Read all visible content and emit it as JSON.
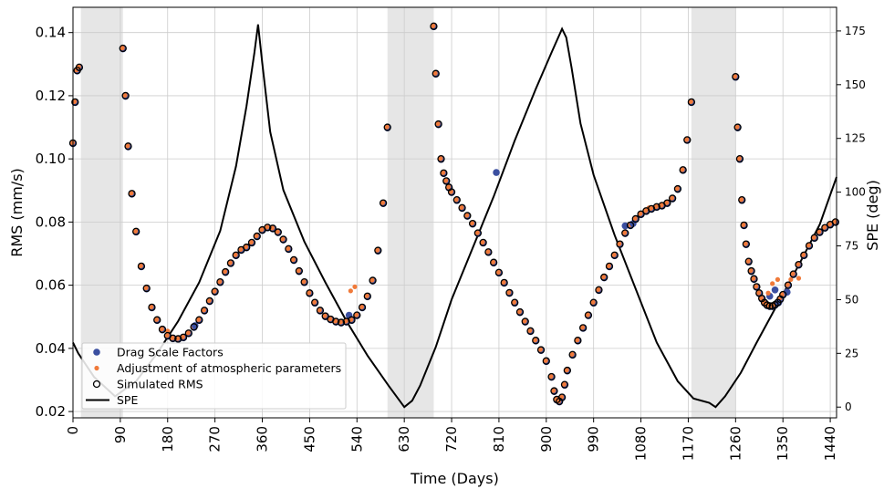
{
  "chart_data": {
    "type": "scatter",
    "xlabel": "Time (Days)",
    "ylabel": "RMS (mm/s)",
    "ylabel_right": "SPE (deg)",
    "xlim": [
      0,
      1452
    ],
    "ylim": [
      0.018,
      0.148
    ],
    "ylim_right": [
      -5,
      186
    ],
    "x_ticks": [
      0,
      90,
      180,
      270,
      360,
      450,
      540,
      630,
      720,
      810,
      900,
      990,
      1080,
      1170,
      1260,
      1350,
      1440
    ],
    "y_ticks": [
      0.02,
      0.04,
      0.06,
      0.08,
      0.1,
      0.12,
      0.14
    ],
    "y_tick_labels": [
      "0.02",
      "0.04",
      "0.06",
      "0.08",
      "0.10",
      "0.12",
      "0.14"
    ],
    "y_right_ticks": [
      0,
      25,
      50,
      75,
      100,
      125,
      150,
      175
    ],
    "grid": true,
    "legend_position": "lower-left",
    "shaded_intervals": [
      [
        15,
        95
      ],
      [
        598,
        686
      ],
      [
        1176,
        1260
      ]
    ],
    "colors": {
      "drag": "#3b4fa0",
      "atmos": "#f07a3a",
      "simulated": "#000000",
      "spe": "#000000",
      "shade": "#e6e6e6",
      "grid": "#cccccc"
    },
    "series": [
      {
        "name": "Drag Scale Factors",
        "marker": "filled-circle",
        "points": [
          [
            805,
            0.0957
          ],
          [
            232,
            0.0472
          ],
          [
            1050,
            0.0788
          ],
          [
            525,
            0.0505
          ],
          [
            1335,
            0.0585
          ],
          [
            1342,
            0.0545
          ],
          [
            1325,
            0.0565
          ],
          [
            1065,
            0.0795
          ],
          [
            1358,
            0.0578
          ]
        ]
      },
      {
        "name": "Adjustment of atmospheric parameters",
        "marker": "small-filled-circle",
        "points": [
          [
            536,
            0.0595
          ],
          [
            528,
            0.0582
          ],
          [
            1340,
            0.0618
          ],
          [
            1365,
            0.0618
          ],
          [
            1380,
            0.0622
          ],
          [
            1322,
            0.0575
          ],
          [
            180,
            0.0455
          ],
          [
            1095,
            0.0845
          ],
          [
            1330,
            0.0605
          ]
        ]
      },
      {
        "name": "Simulated RMS",
        "marker": "open-circle",
        "segments": [
          {
            "x": [
              0,
              4,
              8,
              12
            ],
            "y": [
              0.105,
              0.118,
              0.128,
              0.129
            ]
          },
          {
            "x": [
              95,
              100,
              105,
              112,
              120,
              130,
              140,
              150,
              160,
              170,
              180,
              190,
              200,
              210,
              220,
              230,
              240,
              250,
              260,
              270,
              280,
              290,
              300,
              310,
              320,
              330,
              340,
              350,
              360,
              370,
              380,
              390,
              400,
              410,
              420,
              430,
              440,
              450,
              460,
              470,
              480,
              490,
              500,
              510,
              520,
              530,
              540,
              550,
              560,
              570,
              580,
              590,
              598
            ],
            "y": [
              0.135,
              0.12,
              0.104,
              0.089,
              0.077,
              0.066,
              0.059,
              0.053,
              0.049,
              0.046,
              0.044,
              0.0432,
              0.043,
              0.0435,
              0.0448,
              0.0468,
              0.049,
              0.052,
              0.055,
              0.058,
              0.061,
              0.0642,
              0.067,
              0.0695,
              0.0712,
              0.072,
              0.0735,
              0.0755,
              0.0775,
              0.0783,
              0.078,
              0.0768,
              0.0745,
              0.0715,
              0.068,
              0.0645,
              0.061,
              0.0575,
              0.0545,
              0.052,
              0.0502,
              0.0492,
              0.0485,
              0.0482,
              0.0485,
              0.049,
              0.0505,
              0.053,
              0.0565,
              0.0615,
              0.071,
              0.086,
              0.11
            ]
          },
          {
            "x": [
              686,
              690,
              695,
              700,
              705,
              710,
              715,
              720,
              730,
              740,
              750,
              760,
              770,
              780,
              790,
              800,
              810,
              820,
              830,
              840,
              850,
              860,
              870,
              880,
              890,
              900,
              910,
              915,
              920,
              925,
              930,
              935,
              940,
              950,
              960,
              970,
              980,
              990,
              1000,
              1010,
              1020,
              1030,
              1040,
              1050,
              1060,
              1070,
              1080,
              1090,
              1100,
              1110,
              1120,
              1130,
              1140,
              1150,
              1160,
              1168,
              1176
            ],
            "y": [
              0.142,
              0.127,
              0.111,
              0.1,
              0.0955,
              0.093,
              0.091,
              0.0895,
              0.087,
              0.0845,
              0.082,
              0.0795,
              0.0765,
              0.0735,
              0.0705,
              0.0672,
              0.064,
              0.0608,
              0.0576,
              0.0545,
              0.0515,
              0.0485,
              0.0455,
              0.0425,
              0.0395,
              0.036,
              0.031,
              0.0265,
              0.0238,
              0.0232,
              0.0245,
              0.0285,
              0.033,
              0.038,
              0.0425,
              0.0465,
              0.0505,
              0.0545,
              0.0585,
              0.0625,
              0.066,
              0.0695,
              0.073,
              0.0765,
              0.079,
              0.081,
              0.0825,
              0.0835,
              0.0842,
              0.0848,
              0.0852,
              0.086,
              0.0875,
              0.0905,
              0.0965,
              0.106,
              0.118
            ]
          },
          {
            "x": [
              1260,
              1264,
              1268,
              1272,
              1276,
              1280,
              1285,
              1290,
              1295,
              1300,
              1305,
              1310,
              1315,
              1320,
              1325,
              1330,
              1335,
              1340,
              1345,
              1350,
              1360,
              1370,
              1380,
              1390,
              1400,
              1410,
              1420,
              1430,
              1440,
              1450
            ],
            "y": [
              0.126,
              0.11,
              0.1,
              0.087,
              0.079,
              0.073,
              0.0675,
              0.0645,
              0.062,
              0.0595,
              0.0575,
              0.0558,
              0.0545,
              0.0537,
              0.0534,
              0.0534,
              0.0538,
              0.0545,
              0.0556,
              0.057,
              0.06,
              0.0635,
              0.0665,
              0.0695,
              0.0725,
              0.075,
              0.0768,
              0.0782,
              0.0792,
              0.08
            ]
          }
        ]
      },
      {
        "name": "SPE",
        "axis": "right",
        "line": true,
        "segments": [
          {
            "x": [
              0,
              10,
              40,
              80,
              120,
              160,
              200,
              240,
              280,
              310,
              330,
              345,
              352,
              360,
              375,
              400,
              440,
              480,
              520,
              560,
              600,
              630,
              645,
              660,
              690,
              720,
              760,
              800,
              840,
              880,
              910,
              930,
              938,
              948,
              965,
              990,
              1030,
              1070,
              1110,
              1150,
              1180,
              1210,
              1222,
              1240,
              1270,
              1300,
              1340,
              1380,
              1420,
              1452
            ],
            "y": [
              30,
              25,
              14,
              5,
              12,
              25,
              40,
              58,
              82,
              112,
              140,
              165,
              178,
              160,
              128,
              101,
              77,
              58,
              40,
              24,
              10,
              0,
              3,
              10,
              28,
              50,
              74,
              98,
              124,
              148,
              165,
              176,
              172,
              158,
              132,
              108,
              80,
              55,
              30,
              12,
              4,
              2,
              0,
              5,
              16,
              30,
              48,
              66,
              85,
              107
            ]
          }
        ]
      }
    ]
  }
}
